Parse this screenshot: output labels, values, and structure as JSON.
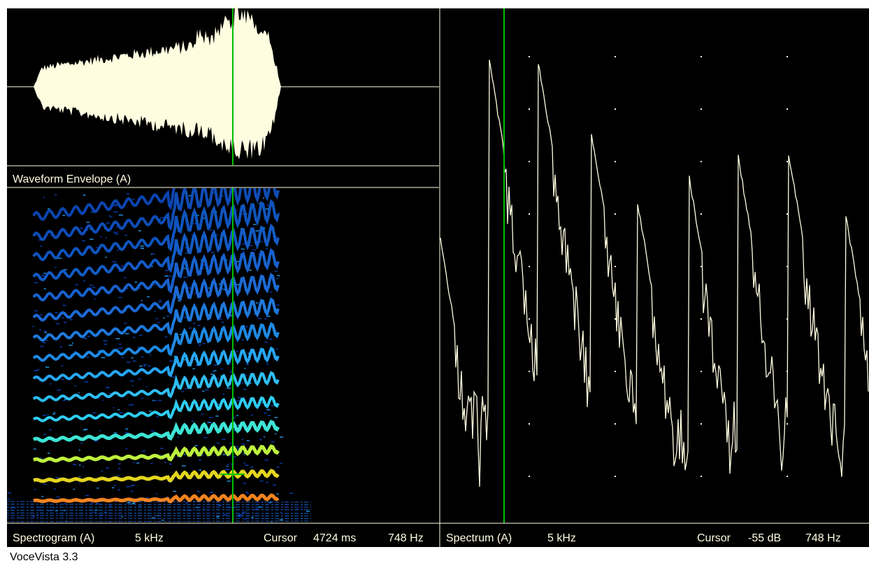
{
  "waveform_panel": {
    "label": "Waveform Envelope (A)"
  },
  "spectrogram_status": {
    "name": "Spectrogram (A)",
    "range": "5 kHz",
    "cursor_label": "Cursor",
    "cursor_time": "4724 ms",
    "cursor_freq": "748 Hz"
  },
  "spectrum_status": {
    "name": "Spectrum (A)",
    "range": "5 kHz",
    "cursor_label": "Cursor",
    "cursor_level": "-55 dB",
    "cursor_freq": "748 Hz"
  },
  "footer": {
    "app_name": "VoceVista 3.3"
  }
}
